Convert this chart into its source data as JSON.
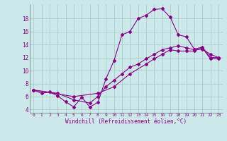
{
  "xlabel": "Windchill (Refroidissement éolien,°C)",
  "bg_color": "#cce8e8",
  "line_color": "#880088",
  "grid_color": "#aacccc",
  "ylim": [
    3.5,
    20.2
  ],
  "xlim": [
    -0.5,
    23.5
  ],
  "yticks": [
    4,
    6,
    8,
    10,
    12,
    14,
    16,
    18
  ],
  "xticks": [
    0,
    1,
    2,
    3,
    4,
    5,
    6,
    7,
    8,
    9,
    10,
    11,
    12,
    13,
    14,
    15,
    16,
    17,
    18,
    19,
    20,
    21,
    22,
    23
  ],
  "line1_x": [
    0,
    1,
    2,
    3,
    4,
    5,
    6,
    7,
    8,
    9,
    10,
    11,
    12,
    13,
    14,
    15,
    16,
    17,
    18,
    19,
    20,
    21,
    22,
    23
  ],
  "line1_y": [
    7.0,
    6.5,
    6.7,
    6.1,
    5.2,
    4.4,
    5.9,
    4.4,
    5.1,
    8.7,
    11.5,
    15.5,
    16.0,
    18.0,
    18.5,
    19.4,
    19.5,
    18.2,
    15.5,
    15.2,
    13.3,
    13.6,
    12.0,
    12.0
  ],
  "line2_x": [
    0,
    3,
    5,
    7,
    8,
    9,
    10,
    11,
    12,
    13,
    14,
    15,
    16,
    17,
    18,
    19,
    20,
    21,
    22,
    23
  ],
  "line2_y": [
    7.0,
    6.5,
    5.5,
    5.0,
    6.0,
    7.5,
    8.5,
    9.5,
    10.5,
    11.0,
    11.8,
    12.5,
    13.2,
    13.5,
    13.8,
    13.5,
    13.2,
    13.3,
    12.5,
    12.0
  ],
  "line3_x": [
    0,
    5,
    8,
    10,
    12,
    14,
    15,
    16,
    17,
    18,
    19,
    20,
    21,
    22,
    23
  ],
  "line3_y": [
    7.0,
    6.0,
    6.5,
    7.5,
    9.5,
    11.0,
    11.8,
    12.5,
    13.2,
    13.0,
    13.0,
    13.0,
    13.5,
    11.8,
    11.8
  ]
}
